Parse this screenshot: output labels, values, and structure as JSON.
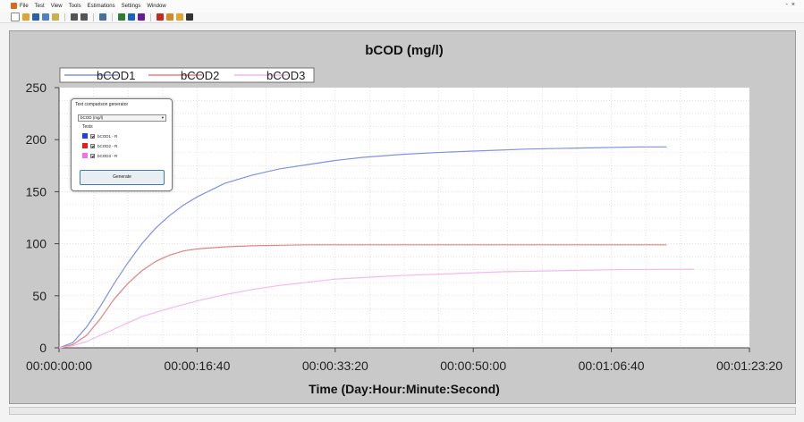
{
  "menu": {
    "items": [
      "File",
      "Test",
      "View",
      "Tools",
      "Estimations",
      "Settings",
      "Window"
    ]
  },
  "window_controls": [
    "-",
    "×"
  ],
  "toolbar": {
    "icons": [
      "new-file-icon",
      "open-folder-icon",
      "save-icon",
      "save-all-icon",
      "tools-icon",
      "play-icon",
      "stop-icon",
      "search-icon",
      "chart-a-icon",
      "chart-b-icon",
      "chart-c-icon",
      "grid-icon",
      "export-icon",
      "bar-chart-icon",
      "image-icon"
    ],
    "colors": [
      "#ffffff",
      "#e0a431",
      "#2b5fa8",
      "#4f7fc4",
      "#c9b24b",
      "#555555",
      "#555555",
      "#4a6f9c",
      "#2e7d32",
      "#1565c0",
      "#6a1b9a",
      "#c62828",
      "#d08a2a",
      "#e0a431",
      "#333333"
    ]
  },
  "panel": {
    "title": "Text comparison generator",
    "selected": "bCOD (mg/l)",
    "tests_label": "Tests",
    "tests": [
      {
        "label": "bCOD1 - R",
        "color": "#2040e8"
      },
      {
        "label": "bCOD2 - R",
        "color": "#e02020"
      },
      {
        "label": "bCOD3 - R",
        "color": "#f070f0"
      }
    ],
    "generate_label": "Generate"
  },
  "chart_data": {
    "type": "line",
    "title": "bCOD (mg/l)",
    "xlabel": "Time (Day:Hour:Minute:Second)",
    "ylabel": "",
    "xlim": [
      0,
      5000
    ],
    "ylim": [
      0,
      250
    ],
    "x_ticks": [
      0,
      1000,
      2000,
      3000,
      4000,
      5000
    ],
    "x_tick_labels": [
      "00:00:00:00",
      "00:00:16:40",
      "00:00:33:20",
      "00:00:50:00",
      "00:01:06:40",
      "00:01:23:20"
    ],
    "y_ticks": [
      0,
      50,
      100,
      150,
      200,
      250
    ],
    "y_tick_labels": [
      "0",
      "50",
      "100",
      "150",
      "200",
      "250"
    ],
    "grid": true,
    "legend_position": "top-left",
    "series": [
      {
        "name": "bCOD1",
        "color": "#8090e8",
        "x": [
          0,
          100,
          200,
          300,
          400,
          500,
          600,
          700,
          800,
          900,
          1000,
          1200,
          1400,
          1600,
          1800,
          2000,
          2200,
          2500,
          2800,
          3000,
          3400,
          3800,
          4200,
          4400
        ],
        "y": [
          0,
          5,
          20,
          40,
          62,
          82,
          100,
          115,
          127,
          137,
          145,
          158,
          166,
          172,
          176,
          180,
          183,
          186,
          188,
          189,
          191,
          192,
          193,
          193
        ]
      },
      {
        "name": "bCOD2",
        "color": "#e88080",
        "x": [
          0,
          100,
          200,
          300,
          400,
          500,
          600,
          700,
          800,
          900,
          1000,
          1200,
          1400,
          1600,
          1800,
          2000,
          2500,
          3000,
          3500,
          4000,
          4400
        ],
        "y": [
          0,
          3,
          12,
          28,
          47,
          62,
          74,
          83,
          89,
          93,
          95,
          97,
          98,
          98.5,
          99,
          99,
          99,
          99,
          99,
          99,
          99
        ]
      },
      {
        "name": "bCOD3",
        "color": "#f4b8ec",
        "x": [
          0,
          100,
          200,
          300,
          400,
          500,
          600,
          800,
          1000,
          1200,
          1400,
          1600,
          1800,
          2000,
          2400,
          2800,
          3200,
          3600,
          4000,
          4600
        ],
        "y": [
          0,
          2,
          6,
          12,
          18,
          24,
          30,
          38,
          45,
          51,
          56,
          60,
          63,
          66,
          69,
          71,
          73,
          74,
          75,
          75.5
        ]
      }
    ]
  }
}
